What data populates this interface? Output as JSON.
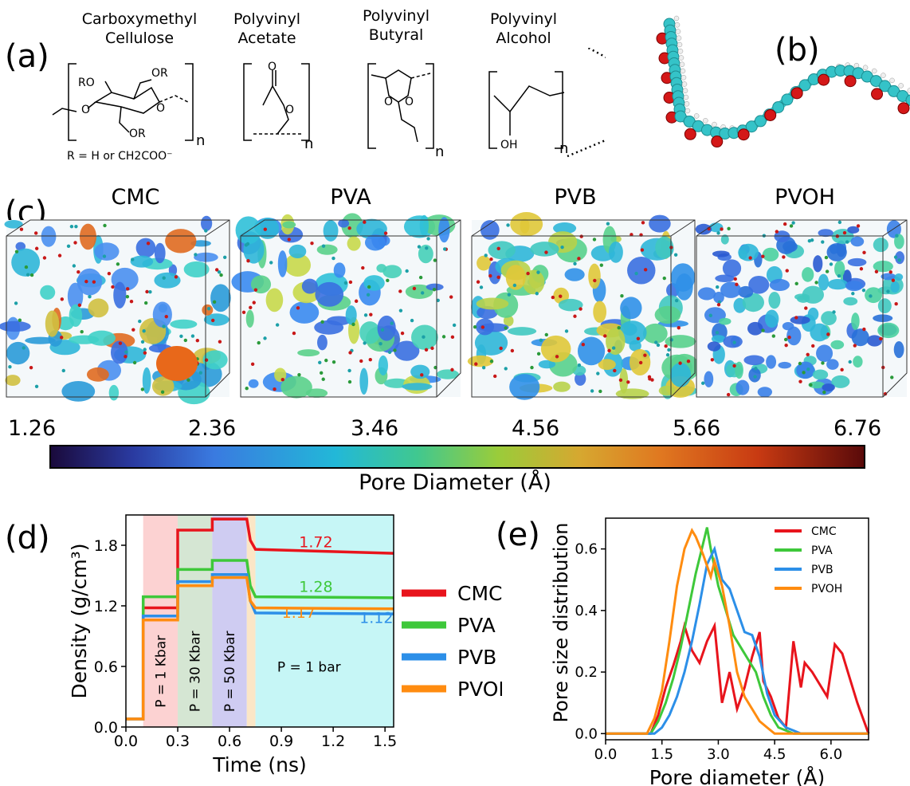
{
  "panels": {
    "a": "(a)",
    "b": "(b)",
    "c": "(c)",
    "d": "(d)",
    "e": "(e)"
  },
  "structures": {
    "cmc": [
      "Carboxymethyl",
      "Cellulose"
    ],
    "pva": [
      "Polyvinyl",
      "Acetate"
    ],
    "pvb": [
      "Polyvinyl",
      "Butyral"
    ],
    "pvoh": [
      "Polyvinyl",
      "Alcohol"
    ],
    "subscript_n": "n",
    "cmc_r_note": "R = H or CH2COO⁻",
    "ro": "RO",
    "or": "OR",
    "o": "O",
    "oh": "OH"
  },
  "boxes": [
    "CMC",
    "PVA",
    "PVB",
    "PVOH"
  ],
  "colorbar": {
    "ticks": [
      "1.26",
      "2.36",
      "3.46",
      "4.56",
      "5.66",
      "6.76"
    ],
    "label": "Pore Diameter (Å)"
  },
  "colors": {
    "CMC": "#e8141c",
    "PVA": "#3ec83a",
    "PVB": "#2c8fe8",
    "PVOH": "#ff8c10"
  },
  "chart_data": [
    {
      "type": "line",
      "xlabel": "Time (ns)",
      "ylabel": "Density (g/cm³)",
      "xlim": [
        0.0,
        1.55
      ],
      "ylim": [
        0.0,
        2.1
      ],
      "xticks": [
        "0.0",
        "0.3",
        "0.6",
        "0.9",
        "1.2",
        "1.5"
      ],
      "yticks": [
        "0.0",
        "0.6",
        "1.2",
        "1.8"
      ],
      "regions": [
        {
          "label": "P = 1 Kbar",
          "from": 0.1,
          "to": 0.3,
          "color": "#fcd2d2"
        },
        {
          "label": "P = 30 Kbar",
          "from": 0.3,
          "to": 0.5,
          "color": "#d5e6d3"
        },
        {
          "label": "P = 50 Kbar",
          "from": 0.5,
          "to": 0.7,
          "color": "#cfccf2"
        },
        {
          "label": "",
          "from": 0.7,
          "to": 0.75,
          "color": "#fbe6c6"
        },
        {
          "label": "P = 1 bar",
          "from": 0.75,
          "to": 1.55,
          "color": "#c6f6f6"
        }
      ],
      "series": [
        {
          "name": "CMC",
          "final_label": "1.72",
          "points": [
            [
              0,
              0.08
            ],
            [
              0.1,
              0.08
            ],
            [
              0.1,
              1.18
            ],
            [
              0.3,
              1.18
            ],
            [
              0.3,
              1.95
            ],
            [
              0.5,
              1.95
            ],
            [
              0.5,
              2.06
            ],
            [
              0.7,
              2.06
            ],
            [
              0.72,
              1.85
            ],
            [
              0.75,
              1.76
            ],
            [
              1.55,
              1.72
            ]
          ]
        },
        {
          "name": "PVA",
          "final_label": "1.28",
          "points": [
            [
              0,
              0.08
            ],
            [
              0.1,
              0.08
            ],
            [
              0.1,
              1.29
            ],
            [
              0.3,
              1.29
            ],
            [
              0.3,
              1.56
            ],
            [
              0.5,
              1.56
            ],
            [
              0.5,
              1.65
            ],
            [
              0.7,
              1.65
            ],
            [
              0.72,
              1.4
            ],
            [
              0.75,
              1.29
            ],
            [
              1.55,
              1.28
            ]
          ]
        },
        {
          "name": "PVB",
          "final_label": "1.12",
          "points": [
            [
              0,
              0.08
            ],
            [
              0.1,
              0.08
            ],
            [
              0.1,
              1.1
            ],
            [
              0.3,
              1.1
            ],
            [
              0.3,
              1.44
            ],
            [
              0.5,
              1.44
            ],
            [
              0.5,
              1.51
            ],
            [
              0.7,
              1.51
            ],
            [
              0.72,
              1.25
            ],
            [
              0.75,
              1.13
            ],
            [
              1.55,
              1.12
            ]
          ]
        },
        {
          "name": "PVOH",
          "final_label": "1.17",
          "points": [
            [
              0,
              0.08
            ],
            [
              0.1,
              0.08
            ],
            [
              0.1,
              1.06
            ],
            [
              0.3,
              1.06
            ],
            [
              0.3,
              1.4
            ],
            [
              0.5,
              1.4
            ],
            [
              0.5,
              1.48
            ],
            [
              0.7,
              1.48
            ],
            [
              0.72,
              1.25
            ],
            [
              0.75,
              1.18
            ],
            [
              1.55,
              1.17
            ]
          ]
        }
      ]
    },
    {
      "type": "line",
      "xlabel": "Pore diameter (Å)",
      "ylabel": "Pore size distribution",
      "xlim": [
        0.0,
        7.0
      ],
      "ylim": [
        -0.02,
        0.7
      ],
      "xticks": [
        "0.0",
        "1.5",
        "3.0",
        "4.5",
        "6.0"
      ],
      "yticks": [
        "0.0",
        "0.2",
        "0.4",
        "0.6"
      ],
      "legend": "top-right",
      "series": [
        {
          "name": "CMC",
          "x": [
            0,
            1.2,
            1.4,
            1.6,
            1.8,
            2.0,
            2.1,
            2.3,
            2.5,
            2.7,
            2.9,
            3.1,
            3.3,
            3.5,
            3.7,
            3.9,
            4.1,
            4.2,
            4.4,
            4.6,
            4.8,
            5.0,
            5.2,
            5.3,
            5.5,
            5.7,
            5.9,
            6.1,
            6.3,
            6.5,
            6.7,
            7.0
          ],
          "y": [
            0,
            0,
            0.06,
            0.15,
            0.22,
            0.3,
            0.35,
            0.27,
            0.23,
            0.3,
            0.35,
            0.1,
            0.2,
            0.08,
            0.15,
            0.25,
            0.33,
            0.17,
            0.12,
            0.05,
            0.02,
            0.3,
            0.15,
            0.23,
            0.2,
            0.16,
            0.12,
            0.29,
            0.26,
            0.18,
            0.1,
            0
          ]
        },
        {
          "name": "PVA",
          "x": [
            0,
            1.2,
            1.4,
            1.6,
            1.8,
            2.0,
            2.2,
            2.4,
            2.6,
            2.7,
            2.8,
            3.0,
            3.2,
            3.4,
            3.6,
            3.8,
            4.0,
            4.2,
            4.4,
            4.6,
            4.8,
            5.0,
            7.0
          ],
          "y": [
            0,
            0,
            0.04,
            0.1,
            0.18,
            0.28,
            0.4,
            0.52,
            0.62,
            0.67,
            0.6,
            0.48,
            0.4,
            0.32,
            0.28,
            0.24,
            0.2,
            0.12,
            0.06,
            0.02,
            0.01,
            0,
            0
          ]
        },
        {
          "name": "PVB",
          "x": [
            0,
            1.3,
            1.5,
            1.7,
            1.9,
            2.1,
            2.3,
            2.5,
            2.7,
            2.9,
            3.1,
            3.3,
            3.5,
            3.7,
            3.9,
            4.1,
            4.3,
            4.5,
            4.8,
            5.0,
            5.2,
            7.0
          ],
          "y": [
            0,
            0,
            0.02,
            0.06,
            0.12,
            0.2,
            0.3,
            0.42,
            0.55,
            0.6,
            0.5,
            0.47,
            0.4,
            0.33,
            0.32,
            0.25,
            0.13,
            0.06,
            0.02,
            0.01,
            0,
            0
          ]
        },
        {
          "name": "PVOH",
          "x": [
            0,
            1.1,
            1.3,
            1.5,
            1.7,
            1.9,
            2.1,
            2.3,
            2.4,
            2.6,
            2.8,
            2.9,
            3.1,
            3.3,
            3.5,
            3.7,
            3.9,
            4.1,
            4.3,
            4.5,
            7.0
          ],
          "y": [
            0,
            0,
            0.05,
            0.14,
            0.3,
            0.48,
            0.6,
            0.66,
            0.64,
            0.58,
            0.51,
            0.56,
            0.48,
            0.35,
            0.2,
            0.12,
            0.08,
            0.04,
            0.02,
            0,
            0
          ]
        }
      ]
    }
  ]
}
